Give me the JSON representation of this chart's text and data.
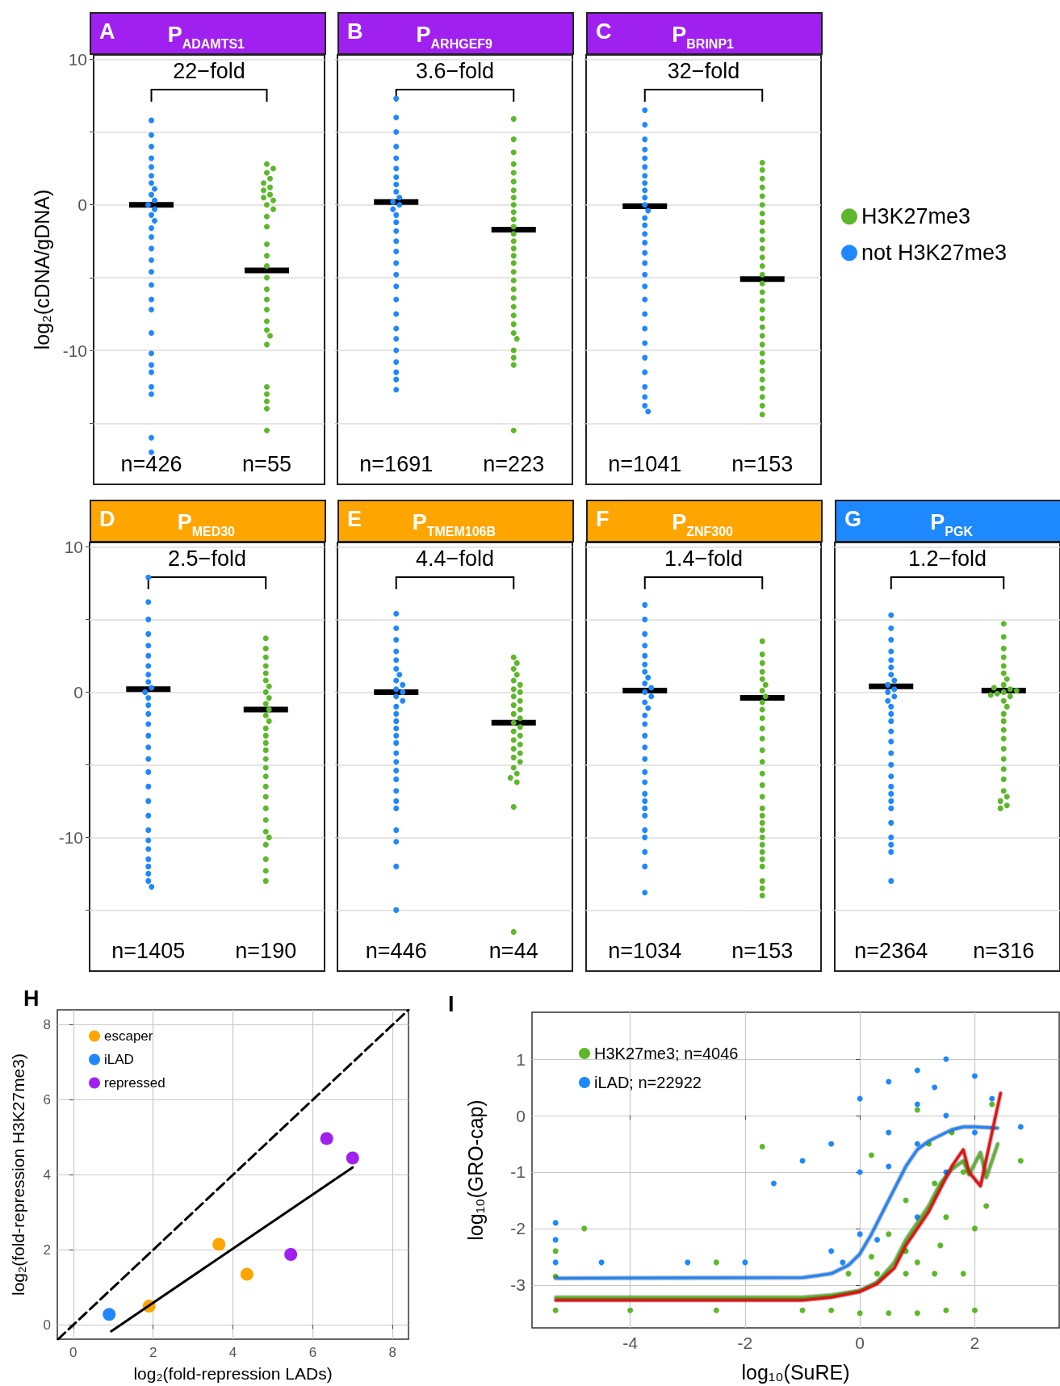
{
  "chart_data": [
    {
      "type": "scatter",
      "title": "P$_{ADAMTS1}$",
      "annotations": [
        "A",
        "22−fold"
      ],
      "ylabel": "log₂(cDNA/gDNA)",
      "categories": [
        "n=426",
        "n=55"
      ],
      "ylim": [
        -19.2,
        10.3
      ],
      "yticks": [
        {
          "value": -15,
          "label": null
        },
        -10,
        {
          "value": -5,
          "label": null
        },
        0,
        {
          "value": 5,
          "label": null
        },
        10
      ],
      "grid": "y",
      "series": [
        {
          "color": "#5cb82a",
          "marker": "circle",
          "x": [
            "n=55",
            "n=55",
            "n=55",
            "n=55",
            "n=55",
            "n=55",
            "n=55",
            "n=55",
            "n=55",
            "n=55",
            "n=55",
            "n=55",
            "n=55",
            "n=55",
            "n=55",
            "n=55",
            "n=55",
            "n=55",
            "n=55",
            "n=55",
            "n=55",
            "n=55",
            "n=55",
            "n=55",
            "n=55",
            "n=55",
            "n=55",
            "n=55",
            "n=55",
            "n=55"
          ],
          "values": [
            2.8,
            2.5,
            2.2,
            1.8,
            1.5,
            1.2,
            1.0,
            0.7,
            0.5,
            0.3,
            0,
            -0.3,
            -0.8,
            -1.5,
            -2.7,
            -3.5,
            -4.2,
            -5.0,
            -5.8,
            -6.5,
            -7.2,
            -8.0,
            -8.6,
            -9.0,
            -9.6,
            -12.5,
            -13.0,
            -13.5,
            -14.0,
            -15.5
          ]
        },
        {
          "color": "#1e88ff",
          "marker": "circle",
          "x": [
            "n=426",
            "n=426",
            "n=426",
            "n=426",
            "n=426",
            "n=426",
            "n=426",
            "n=426",
            "n=426",
            "n=426",
            "n=426",
            "n=426",
            "n=426",
            "n=426",
            "n=426",
            "n=426",
            "n=426",
            "n=426",
            "n=426",
            "n=426",
            "n=426",
            "n=426",
            "n=426",
            "n=426",
            "n=426",
            "n=426",
            "n=426",
            "n=426",
            "n=426",
            "n=426"
          ],
          "values": [
            5.8,
            4.8,
            4.0,
            3.2,
            2.6,
            2.0,
            1.5,
            1.1,
            0.7,
            0.3,
            0,
            -0.3,
            -0.7,
            -1.1,
            -1.6,
            -2.2,
            -3.0,
            -3.8,
            -4.6,
            -5.5,
            -6.5,
            -7.2,
            -8.8,
            -10.2,
            -11.0,
            -11.5,
            -12.5,
            -13.0,
            -16.0,
            -17.0
          ]
        },
        {
          "type": "box",
          "color": "#000000",
          "boxes": [
            {
              "low": 0,
              "q1": 0,
              "median": 0,
              "q3": 0,
              "high": 0
            },
            {
              "low": -4.5,
              "q1": -4.5,
              "median": -4.5,
              "q3": -4.5,
              "high": -4.5
            }
          ]
        }
      ]
    },
    {
      "type": "scatter",
      "title": "P$_{ARHGEF9}$",
      "annotations": [
        "B",
        "3.6−fold"
      ],
      "tick_labels": "x",
      "categories": [
        "n=1691",
        "n=223"
      ],
      "ylim": [
        -19.2,
        10.3
      ],
      "yticks": [
        {
          "value": -15,
          "label": null
        },
        -10,
        {
          "value": -5,
          "label": null
        },
        0,
        {
          "value": 5,
          "label": null
        },
        10
      ],
      "grid": "y",
      "series": [
        {
          "color": "#5cb82a",
          "marker": "circle",
          "x": [
            "n=223",
            "n=223",
            "n=223",
            "n=223",
            "n=223",
            "n=223",
            "n=223",
            "n=223",
            "n=223",
            "n=223",
            "n=223",
            "n=223",
            "n=223",
            "n=223",
            "n=223",
            "n=223",
            "n=223",
            "n=223",
            "n=223",
            "n=223",
            "n=223",
            "n=223",
            "n=223",
            "n=223",
            "n=223",
            "n=223",
            "n=223",
            "n=223",
            "n=223",
            "n=223"
          ],
          "values": [
            5.9,
            4.5,
            3.6,
            2.8,
            2.2,
            1.6,
            1.0,
            0.5,
            0,
            -0.5,
            -1.0,
            -1.5,
            -2.0,
            -2.5,
            -3.0,
            -3.5,
            -4.0,
            -4.6,
            -5.2,
            -5.8,
            -6.4,
            -7.0,
            -7.6,
            -8.2,
            -8.8,
            -9.2,
            -10.0,
            -10.5,
            -11.0,
            -15.5
          ]
        },
        {
          "color": "#1e88ff",
          "marker": "circle",
          "x": [
            "n=1691",
            "n=1691",
            "n=1691",
            "n=1691",
            "n=1691",
            "n=1691",
            "n=1691",
            "n=1691",
            "n=1691",
            "n=1691",
            "n=1691",
            "n=1691",
            "n=1691",
            "n=1691",
            "n=1691",
            "n=1691",
            "n=1691",
            "n=1691",
            "n=1691",
            "n=1691",
            "n=1691",
            "n=1691",
            "n=1691",
            "n=1691",
            "n=1691",
            "n=1691",
            "n=1691",
            "n=1691",
            "n=1691",
            "n=1691"
          ],
          "values": [
            7.3,
            6.0,
            5.0,
            4.0,
            3.2,
            2.5,
            1.9,
            1.4,
            0.9,
            0.5,
            0.2,
            0,
            -0.3,
            -0.7,
            -1.2,
            -1.8,
            -2.5,
            -3.2,
            -4.0,
            -4.8,
            -5.6,
            -6.5,
            -7.5,
            -8.5,
            -9.2,
            -10.0,
            -10.8,
            -11.5,
            -12.0,
            -12.7
          ]
        },
        {
          "type": "box",
          "color": "#000000",
          "boxes": [
            {
              "low": 0.2,
              "q1": 0.2,
              "median": 0.2,
              "q3": 0.2,
              "high": 0.2
            },
            {
              "low": -1.7,
              "q1": -1.7,
              "median": -1.7,
              "q3": -1.7,
              "high": -1.7
            }
          ]
        }
      ]
    },
    {
      "type": "scatter",
      "title": "P$_{BRINP1}$",
      "annotations": [
        "C",
        "32−fold"
      ],
      "tick_labels": "x",
      "legend": "right",
      "categories": [
        "n=1041",
        "n=153"
      ],
      "ylim": [
        -19.2,
        10.3
      ],
      "yticks": [
        {
          "value": -15,
          "label": null
        },
        -10,
        {
          "value": -5,
          "label": null
        },
        0,
        {
          "value": 5,
          "label": null
        },
        10
      ],
      "grid": "y",
      "series": [
        {
          "name": "H3K27me3",
          "color": "#5cb82a",
          "marker": "circle",
          "x": [
            "n=153",
            "n=153",
            "n=153",
            "n=153",
            "n=153",
            "n=153",
            "n=153",
            "n=153",
            "n=153",
            "n=153",
            "n=153",
            "n=153",
            "n=153",
            "n=153",
            "n=153",
            "n=153",
            "n=153",
            "n=153",
            "n=153",
            "n=153",
            "n=153",
            "n=153",
            "n=153",
            "n=153",
            "n=153",
            "n=153",
            "n=153",
            "n=153",
            "n=153",
            "n=153"
          ],
          "values": [
            2.9,
            2.4,
            1.8,
            1.2,
            0.6,
            0,
            -0.6,
            -1.2,
            -1.8,
            -2.4,
            -3.0,
            -3.6,
            -4.2,
            -4.8,
            -5.4,
            -6.0,
            -6.6,
            -7.2,
            -7.8,
            -8.4,
            -9.0,
            -9.6,
            -10.2,
            -10.8,
            -11.4,
            -12.0,
            -12.6,
            -13.2,
            -13.8,
            -14.4
          ]
        },
        {
          "name": "not H3K27me3",
          "color": "#1e88ff",
          "marker": "circle",
          "x": [
            "n=1041",
            "n=1041",
            "n=1041",
            "n=1041",
            "n=1041",
            "n=1041",
            "n=1041",
            "n=1041",
            "n=1041",
            "n=1041",
            "n=1041",
            "n=1041",
            "n=1041",
            "n=1041",
            "n=1041",
            "n=1041",
            "n=1041",
            "n=1041",
            "n=1041",
            "n=1041",
            "n=1041",
            "n=1041",
            "n=1041",
            "n=1041",
            "n=1041",
            "n=1041",
            "n=1041",
            "n=1041",
            "n=1041",
            "n=1041"
          ],
          "values": [
            6.5,
            5.5,
            4.5,
            3.8,
            3.2,
            2.6,
            2.0,
            1.5,
            1.0,
            0.5,
            0,
            -0.4,
            -0.9,
            -1.4,
            -2.0,
            -2.6,
            -3.3,
            -4.0,
            -4.8,
            -5.6,
            -6.5,
            -7.5,
            -8.5,
            -9.5,
            -10.5,
            -11.5,
            -12.5,
            -13.2,
            -13.8,
            -14.2
          ]
        },
        {
          "type": "box",
          "color": "#000000",
          "boxes": [
            {
              "low": -0.1,
              "q1": -0.1,
              "median": -0.1,
              "q3": -0.1,
              "high": -0.1
            },
            {
              "low": -5.1,
              "q1": -5.1,
              "median": -5.1,
              "q3": -5.1,
              "high": -5.1
            }
          ]
        }
      ]
    },
    {
      "type": "scatter",
      "title": "P$_{MED30}$",
      "annotations": [
        "D",
        "2.5−fold"
      ],
      "categories": [
        "n=1405",
        "n=190"
      ],
      "ylim": [
        -19.2,
        10.3
      ],
      "yticks": [
        {
          "value": -15,
          "label": null
        },
        -10,
        {
          "value": -5,
          "label": null
        },
        0,
        {
          "value": 5,
          "label": null
        },
        10
      ],
      "grid": "y",
      "series": [
        {
          "color": "#5cb82a",
          "marker": "circle",
          "x": [
            "n=190",
            "n=190",
            "n=190",
            "n=190",
            "n=190",
            "n=190",
            "n=190",
            "n=190",
            "n=190",
            "n=190",
            "n=190",
            "n=190",
            "n=190",
            "n=190",
            "n=190",
            "n=190",
            "n=190",
            "n=190",
            "n=190",
            "n=190",
            "n=190",
            "n=190",
            "n=190",
            "n=190",
            "n=190",
            "n=190",
            "n=190",
            "n=190",
            "n=190",
            "n=190"
          ],
          "values": [
            3.7,
            3.0,
            2.4,
            1.8,
            1.3,
            0.8,
            0.4,
            0,
            -0.4,
            -0.8,
            -1.2,
            -1.6,
            -2.0,
            -2.5,
            -3.0,
            -3.5,
            -4.0,
            -4.6,
            -5.2,
            -5.8,
            -6.5,
            -7.2,
            -8.0,
            -8.8,
            -9.6,
            -10.0,
            -10.5,
            -11.5,
            -12.3,
            -13.0
          ]
        },
        {
          "color": "#1e88ff",
          "marker": "circle",
          "x": [
            "n=1405",
            "n=1405",
            "n=1405",
            "n=1405",
            "n=1405",
            "n=1405",
            "n=1405",
            "n=1405",
            "n=1405",
            "n=1405",
            "n=1405",
            "n=1405",
            "n=1405",
            "n=1405",
            "n=1405",
            "n=1405",
            "n=1405",
            "n=1405",
            "n=1405",
            "n=1405",
            "n=1405",
            "n=1405",
            "n=1405",
            "n=1405",
            "n=1405",
            "n=1405",
            "n=1405",
            "n=1405",
            "n=1405",
            "n=1405"
          ],
          "values": [
            7.9,
            6.2,
            5.0,
            4.0,
            3.2,
            2.5,
            1.8,
            1.2,
            0.7,
            0.3,
            0,
            -0.4,
            -0.9,
            -1.5,
            -2.2,
            -3.0,
            -3.8,
            -4.6,
            -5.5,
            -6.5,
            -7.5,
            -8.5,
            -9.5,
            -10.2,
            -10.8,
            -11.5,
            -12.0,
            -12.5,
            -13.0,
            -13.4
          ]
        },
        {
          "type": "box",
          "color": "#000000",
          "boxes": [
            {
              "low": 0.2,
              "q1": 0.2,
              "median": 0.2,
              "q3": 0.2,
              "high": 0.2
            },
            {
              "low": -1.2,
              "q1": -1.2,
              "median": -1.2,
              "q3": -1.2,
              "high": -1.2
            }
          ]
        }
      ]
    },
    {
      "type": "scatter",
      "title": "P$_{TMEM106B}$",
      "annotations": [
        "E",
        "4.4−fold"
      ],
      "tick_labels": "x",
      "categories": [
        "n=446",
        "n=44"
      ],
      "ylim": [
        -19.2,
        10.3
      ],
      "yticks": [
        {
          "value": -15,
          "label": null
        },
        -10,
        {
          "value": -5,
          "label": null
        },
        0,
        {
          "value": 5,
          "label": null
        },
        10
      ],
      "grid": "y",
      "series": [
        {
          "color": "#5cb82a",
          "marker": "circle",
          "x": [
            "n=44",
            "n=44",
            "n=44",
            "n=44",
            "n=44",
            "n=44",
            "n=44",
            "n=44",
            "n=44",
            "n=44",
            "n=44",
            "n=44",
            "n=44",
            "n=44",
            "n=44",
            "n=44",
            "n=44",
            "n=44",
            "n=44",
            "n=44",
            "n=44",
            "n=44",
            "n=44",
            "n=44",
            "n=44",
            "n=44",
            "n=44",
            "n=44",
            "n=44",
            "n=44"
          ],
          "values": [
            2.4,
            2.0,
            1.6,
            1.2,
            0.8,
            0.5,
            0.2,
            0,
            -0.3,
            -0.6,
            -0.9,
            -1.2,
            -1.5,
            -1.8,
            -2.1,
            -2.4,
            -2.7,
            -3.0,
            -3.3,
            -3.6,
            -3.9,
            -4.2,
            -4.5,
            -4.8,
            -5.2,
            -5.6,
            -5.9,
            -6.2,
            -7.9,
            -16.5
          ]
        },
        {
          "color": "#1e88ff",
          "marker": "circle",
          "x": [
            "n=446",
            "n=446",
            "n=446",
            "n=446",
            "n=446",
            "n=446",
            "n=446",
            "n=446",
            "n=446",
            "n=446",
            "n=446",
            "n=446",
            "n=446",
            "n=446",
            "n=446",
            "n=446",
            "n=446",
            "n=446",
            "n=446",
            "n=446",
            "n=446",
            "n=446",
            "n=446",
            "n=446",
            "n=446",
            "n=446",
            "n=446",
            "n=446",
            "n=446",
            "n=446"
          ],
          "values": [
            5.4,
            4.4,
            3.6,
            2.8,
            2.2,
            1.6,
            1.2,
            0.8,
            0.5,
            0.2,
            0,
            -0.3,
            -0.6,
            -1.0,
            -1.5,
            -2.0,
            -2.5,
            -3.0,
            -3.5,
            -4.2,
            -4.8,
            -5.4,
            -6.0,
            -6.8,
            -7.5,
            -8.0,
            -9.5,
            -10.3,
            -12.0,
            -15.0
          ]
        },
        {
          "type": "box",
          "color": "#000000",
          "boxes": [
            {
              "low": 0,
              "q1": 0,
              "median": 0,
              "q3": 0,
              "high": 0
            },
            {
              "low": -2.1,
              "q1": -2.1,
              "median": -2.1,
              "q3": -2.1,
              "high": -2.1
            }
          ]
        }
      ]
    },
    {
      "type": "scatter",
      "title": "P$_{ZNF300}$",
      "annotations": [
        "F",
        "1.4−fold"
      ],
      "tick_labels": "x",
      "categories": [
        "n=1034",
        "n=153"
      ],
      "ylim": [
        -19.2,
        10.3
      ],
      "yticks": [
        {
          "value": -15,
          "label": null
        },
        -10,
        {
          "value": -5,
          "label": null
        },
        0,
        {
          "value": 5,
          "label": null
        },
        10
      ],
      "grid": "y",
      "series": [
        {
          "color": "#5cb82a",
          "marker": "circle",
          "x": [
            "n=153",
            "n=153",
            "n=153",
            "n=153",
            "n=153",
            "n=153",
            "n=153",
            "n=153",
            "n=153",
            "n=153",
            "n=153",
            "n=153",
            "n=153",
            "n=153",
            "n=153",
            "n=153",
            "n=153",
            "n=153",
            "n=153",
            "n=153",
            "n=153",
            "n=153",
            "n=153",
            "n=153",
            "n=153",
            "n=153",
            "n=153",
            "n=153",
            "n=153",
            "n=153"
          ],
          "values": [
            3.5,
            2.6,
            2.0,
            1.4,
            0.9,
            0.5,
            0.1,
            -0.3,
            -0.7,
            -1.2,
            -1.8,
            -2.5,
            -3.2,
            -4.0,
            -4.8,
            -5.6,
            -6.4,
            -7.2,
            -8.0,
            -8.5,
            -9.0,
            -9.5,
            -10.0,
            -10.5,
            -11.0,
            -11.5,
            -12.0,
            -13.0,
            -13.5,
            -14.0
          ]
        },
        {
          "color": "#1e88ff",
          "marker": "circle",
          "x": [
            "n=1034",
            "n=1034",
            "n=1034",
            "n=1034",
            "n=1034",
            "n=1034",
            "n=1034",
            "n=1034",
            "n=1034",
            "n=1034",
            "n=1034",
            "n=1034",
            "n=1034",
            "n=1034",
            "n=1034",
            "n=1034",
            "n=1034",
            "n=1034",
            "n=1034",
            "n=1034",
            "n=1034",
            "n=1034",
            "n=1034",
            "n=1034",
            "n=1034",
            "n=1034",
            "n=1034",
            "n=1034",
            "n=1034",
            "n=1034"
          ],
          "values": [
            6.0,
            5.0,
            4.0,
            3.2,
            2.5,
            1.9,
            1.4,
            1.0,
            0.6,
            0.3,
            0,
            -0.3,
            -0.7,
            -1.1,
            -1.6,
            -2.2,
            -3.0,
            -3.8,
            -4.6,
            -5.5,
            -6.2,
            -7.0,
            -7.5,
            -8.0,
            -8.5,
            -9.5,
            -10.0,
            -11.0,
            -12.0,
            -13.8
          ]
        },
        {
          "type": "box",
          "color": "#000000",
          "boxes": [
            {
              "low": 0.1,
              "q1": 0.1,
              "median": 0.1,
              "q3": 0.1,
              "high": 0.1
            },
            {
              "low": -0.4,
              "q1": -0.4,
              "median": -0.4,
              "q3": -0.4,
              "high": -0.4
            }
          ]
        }
      ]
    },
    {
      "type": "scatter",
      "title": "P$_{PGK}$",
      "annotations": [
        "G",
        "1.2−fold"
      ],
      "tick_labels": "x",
      "categories": [
        "n=2364",
        "n=316"
      ],
      "ylim": [
        -19.2,
        10.3
      ],
      "yticks": [
        {
          "value": -15,
          "label": null
        },
        -10,
        {
          "value": -5,
          "label": null
        },
        0,
        {
          "value": 5,
          "label": null
        },
        10
      ],
      "grid": "y",
      "series": [
        {
          "color": "#5cb82a",
          "marker": "circle",
          "x": [
            "n=316",
            "n=316",
            "n=316",
            "n=316",
            "n=316",
            "n=316",
            "n=316",
            "n=316",
            "n=316",
            "n=316",
            "n=316",
            "n=316",
            "n=316",
            "n=316",
            "n=316",
            "n=316",
            "n=316",
            "n=316",
            "n=316",
            "n=316",
            "n=316",
            "n=316",
            "n=316",
            "n=316",
            "n=316",
            "n=316",
            "n=316",
            "n=316",
            "n=316",
            "n=316"
          ],
          "values": [
            4.7,
            3.8,
            3.0,
            2.4,
            1.8,
            1.3,
            0.9,
            0.5,
            0.2,
            0,
            -0.3,
            -0.6,
            -1.0,
            -1.5,
            -2.0,
            -2.6,
            -3.2,
            -3.9,
            -4.6,
            -5.3,
            -6.0,
            -6.8,
            -7.2,
            -7.5,
            -7.8,
            -8.0,
            -0.1,
            0.1,
            0.3,
            -0.2
          ]
        },
        {
          "color": "#1e88ff",
          "marker": "circle",
          "x": [
            "n=2364",
            "n=2364",
            "n=2364",
            "n=2364",
            "n=2364",
            "n=2364",
            "n=2364",
            "n=2364",
            "n=2364",
            "n=2364",
            "n=2364",
            "n=2364",
            "n=2364",
            "n=2364",
            "n=2364",
            "n=2364",
            "n=2364",
            "n=2364",
            "n=2364",
            "n=2364",
            "n=2364",
            "n=2364",
            "n=2364",
            "n=2364",
            "n=2364",
            "n=2364",
            "n=2364",
            "n=2364",
            "n=2364",
            "n=2364"
          ],
          "values": [
            5.3,
            4.4,
            3.6,
            2.8,
            2.2,
            1.7,
            1.2,
            0.8,
            0.5,
            0.2,
            0,
            -0.3,
            -0.6,
            -1.0,
            -1.5,
            -2.0,
            -2.7,
            -3.4,
            -4.2,
            -5.0,
            -5.8,
            -6.5,
            -7.0,
            -7.5,
            -8.0,
            -9.0,
            -10.0,
            -10.5,
            -11.0,
            -13.0
          ]
        },
        {
          "type": "box",
          "color": "#000000",
          "boxes": [
            {
              "low": 0.4,
              "q1": 0.4,
              "median": 0.4,
              "q3": 0.4,
              "high": 0.4
            },
            {
              "low": 0.1,
              "q1": 0.1,
              "median": 0.1,
              "q3": 0.1,
              "high": 0.1
            }
          ]
        }
      ]
    },
    {
      "type": "scatter",
      "title": "H",
      "xlabel": "log₂(fold-repression LADs)",
      "ylabel": "log₂(fold-repression H3K27me3)",
      "xlim": [
        -0.4,
        8.4
      ],
      "xticks": [
        0,
        2,
        4,
        6,
        8
      ],
      "ylim": [
        -0.38,
        8.4
      ],
      "yticks": [
        0,
        2,
        4,
        6,
        8
      ],
      "grid": true,
      "legend": "top left",
      "marker": "circle",
      "series": [
        {
          "name": "escaper",
          "color": "#ffa500",
          "x": [
            1.9,
            3.65,
            4.35
          ],
          "values": [
            0.5,
            2.15,
            1.35
          ]
        },
        {
          "name": "iLAD",
          "color": "#1e88ff",
          "x": [
            0.9
          ],
          "values": [
            0.28
          ]
        },
        {
          "name": "repressed",
          "color": "#a020f0",
          "x": [
            5.45,
            6.35,
            7.0
          ],
          "values": [
            1.88,
            4.97,
            4.45
          ]
        },
        {
          "type": "line",
          "color": "#000000",
          "marker": "none",
          "line_style": "solid",
          "x": [
            0.95,
            7.0
          ],
          "values": [
            -0.17,
            4.2
          ]
        },
        {
          "type": "line",
          "color": "#000000",
          "marker": "none",
          "line_style": "dashed",
          "x": [
            -0.38,
            8.4
          ],
          "values": [
            -0.38,
            8.4
          ]
        }
      ]
    },
    {
      "type": "scatter",
      "title": "I",
      "xlabel": "log₁₀(SuRE)",
      "ylabel": "log₁₀(GRO-cap)",
      "xlim": [
        -5.71,
        3.47
      ],
      "xticks": [
        -4,
        -2,
        0,
        2
      ],
      "ylim": [
        -3.76,
        1.83
      ],
      "yticks": [
        -3,
        -2,
        -1,
        0,
        1
      ],
      "grid": true,
      "legend": "top left",
      "marker": "circle",
      "series": [
        {
          "name": "H3K27me3; n=4046",
          "color": "#5cb82a",
          "x": [
            -5.3,
            -5.3,
            -5.3,
            -4,
            -2.5,
            -1,
            -0.5,
            0,
            0.5,
            1,
            1.5,
            2,
            -0.2,
            0.3,
            0.8,
            1.3,
            1.8,
            0.2,
            0.8,
            1.4,
            0.5,
            1,
            1.5,
            2,
            0.8,
            1.3,
            1.8,
            2.2,
            1.2,
            1.6,
            1.0,
            2.3,
            2.8,
            -2.5,
            -1.7,
            -4.8,
            0.2
          ],
          "values": [
            -3.45,
            -2.85,
            -2.4,
            -3.45,
            -3.45,
            -3.45,
            -3.45,
            -3.5,
            -3.5,
            -3.5,
            -3.45,
            -3.45,
            -2.8,
            -2.8,
            -2.8,
            -2.8,
            -2.8,
            -2.5,
            -2.4,
            -2.3,
            -2.1,
            -2.6,
            -1.8,
            -2.0,
            -1.5,
            -1.2,
            -1.0,
            -1.6,
            -0.5,
            -0.3,
            0.1,
            0.2,
            -0.8,
            -2.6,
            -0.55,
            -2.0,
            -0.7
          ]
        },
        {
          "name": "iLAD; n=22922",
          "color": "#1e88ff",
          "x": [
            -5.3,
            -5.3,
            -5.3,
            -4.5,
            -3,
            -2,
            -1.5,
            -1,
            -0.5,
            -0.5,
            0,
            0,
            0,
            0.5,
            0.5,
            0.5,
            1,
            1,
            1,
            1,
            1.3,
            1.5,
            1.5,
            1.5,
            2,
            2,
            2.3,
            2.8,
            -0.3,
            0.3
          ],
          "values": [
            -2.6,
            -2.2,
            -1.9,
            -2.6,
            -2.6,
            -2.6,
            -1.2,
            -0.8,
            -0.5,
            -2.4,
            0.3,
            -1,
            -2.1,
            0.6,
            -0.3,
            -0.9,
            0.8,
            0.2,
            -0.5,
            -1.8,
            0.5,
            1.0,
            0,
            -1,
            0.7,
            -0.3,
            0.3,
            -0.2,
            -2.6,
            -2.2
          ]
        },
        {
          "type": "line",
          "color": "#1e88ff",
          "marker": "none",
          "line_style": "solid",
          "x": [
            -5.3,
            -1,
            -0.5,
            -0.2,
            0,
            0.2,
            0.4,
            0.6,
            0.8,
            1.0,
            1.2,
            1.4,
            1.6,
            1.8,
            2.0,
            2.4
          ],
          "values": [
            -2.88,
            -2.87,
            -2.8,
            -2.65,
            -2.45,
            -2.1,
            -1.7,
            -1.3,
            -0.9,
            -0.6,
            -0.45,
            -0.35,
            -0.25,
            -0.2,
            -0.2,
            -0.22
          ]
        },
        {
          "type": "line",
          "color": "#5cb82a",
          "marker": "none",
          "line_style": "solid",
          "x": [
            -5.3,
            -1,
            -0.5,
            0,
            0.3,
            0.6,
            0.8,
            1.0,
            1.2,
            1.4,
            1.6,
            1.8,
            1.9,
            2.1,
            2.2,
            2.4
          ],
          "values": [
            -3.22,
            -3.22,
            -3.18,
            -3.1,
            -2.95,
            -2.6,
            -2.2,
            -1.9,
            -1.6,
            -1.2,
            -0.95,
            -0.8,
            -1.05,
            -0.65,
            -1.1,
            -0.5
          ]
        },
        {
          "type": "line",
          "color": "#ee1111",
          "marker": "none",
          "line_style": "solid",
          "x": [
            -5.3,
            -1,
            -0.5,
            0,
            0.3,
            0.6,
            0.8,
            1.0,
            1.2,
            1.4,
            1.6,
            1.8,
            1.9,
            2.1,
            2.3,
            2.45
          ],
          "values": [
            -3.27,
            -3.27,
            -3.22,
            -3.12,
            -2.98,
            -2.7,
            -2.3,
            -2.0,
            -1.7,
            -1.3,
            -0.9,
            -0.6,
            -1.0,
            -1.25,
            -0.3,
            0.4
          ]
        }
      ]
    }
  ]
}
